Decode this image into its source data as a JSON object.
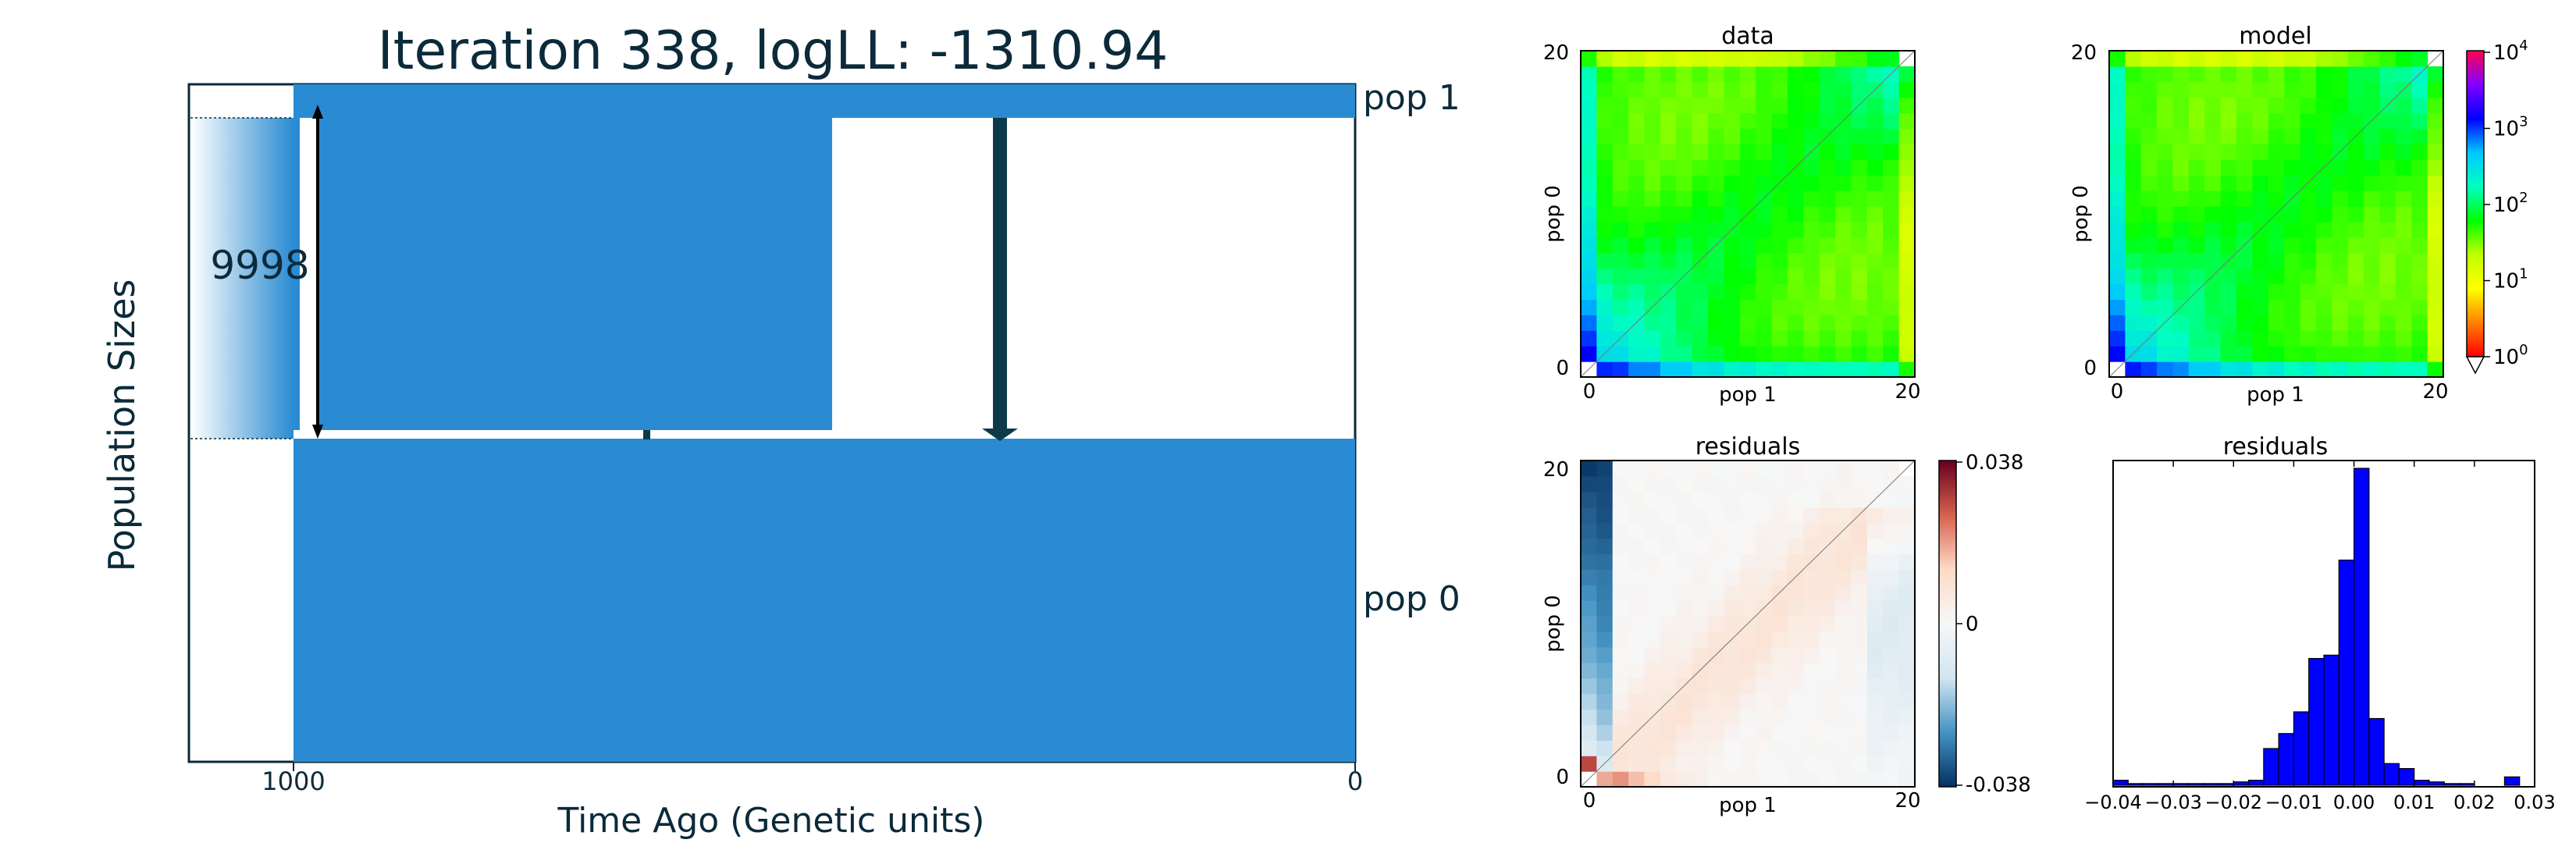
{
  "demography": {
    "title": "Iteration 338, logLL:   -1310.94",
    "ylabel": "Population Sizes",
    "xlabel": "Time Ago (Genetic units)",
    "tick_left": "1000",
    "tick_right": "0",
    "pop1_label": "pop 1",
    "pop0_label": "pop 0",
    "size_label": "9998",
    "fill_color": "#2a8bd2",
    "arrow_color": "#0c3a4a"
  },
  "chart_data": [
    {
      "type": "heatmap",
      "title": "data",
      "xlabel": "pop 1",
      "ylabel": "pop 0",
      "x_ticks": [
        "0",
        "20"
      ],
      "y_ticks": [
        "0",
        "20"
      ],
      "xlim": [
        0,
        20
      ],
      "ylim": [
        0,
        20
      ],
      "grid": false
    },
    {
      "type": "heatmap",
      "title": "model",
      "xlabel": "pop 1",
      "ylabel": "pop 0",
      "x_ticks": [
        "0",
        "20"
      ],
      "y_ticks": [
        "0",
        "20"
      ],
      "xlim": [
        0,
        20
      ],
      "ylim": [
        0,
        20
      ],
      "colorbar": {
        "scale": "log",
        "range": [
          1,
          10000
        ],
        "tick_base": "10",
        "tick_exps": [
          "4",
          "3",
          "2",
          "1",
          "0"
        ],
        "colors": [
          "#ff0050",
          "#8000ff",
          "#0000ff",
          "#00c8ff",
          "#00ffc0",
          "#00ff00",
          "#c0ff00",
          "#ffff00",
          "#ff8000",
          "#ff0000"
        ]
      }
    },
    {
      "type": "heatmap",
      "title": "residuals",
      "xlabel": "pop 1",
      "ylabel": "pop 0",
      "x_ticks": [
        "0",
        "20"
      ],
      "y_ticks": [
        "0",
        "20"
      ],
      "xlim": [
        0,
        20
      ],
      "ylim": [
        0,
        20
      ],
      "colorbar": {
        "range": [
          -0.038,
          0.038
        ],
        "ticks": [
          "0.038",
          "0",
          "-0.038"
        ],
        "colors": [
          "#67001f",
          "#d6604d",
          "#fddbc7",
          "#f7f7f7",
          "#d1e5f0",
          "#4393c3",
          "#053061"
        ]
      }
    },
    {
      "type": "bar",
      "title": "residuals",
      "bin_edges": [
        -0.04,
        -0.0375,
        -0.035,
        -0.0325,
        -0.03,
        -0.0275,
        -0.025,
        -0.0225,
        -0.02,
        -0.0175,
        -0.015,
        -0.0125,
        -0.01,
        -0.0075,
        -0.005,
        -0.0025,
        0.0,
        0.0025,
        0.005,
        0.0075,
        0.01,
        0.0125,
        0.015,
        0.0175,
        0.02,
        0.0225,
        0.025,
        0.0275
      ],
      "values": [
        3,
        1,
        1,
        1,
        1,
        1,
        1,
        1,
        2,
        3,
        22,
        31,
        44,
        76,
        78,
        135,
        190,
        40,
        13,
        10,
        3,
        2,
        1,
        1,
        0,
        0,
        5
      ],
      "xlim": [
        -0.04,
        0.03
      ],
      "x_ticks": [
        "−0.04",
        "−0.03",
        "−0.02",
        "−0.01",
        "0.00",
        "0.01",
        "0.02",
        "0.03"
      ],
      "bar_color": "#0000ff"
    }
  ]
}
